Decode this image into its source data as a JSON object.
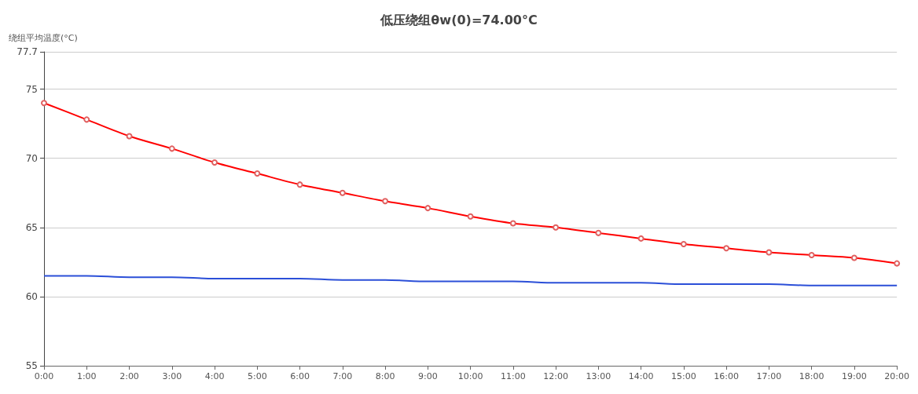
{
  "chart_data": {
    "type": "line",
    "title": "低压绕组θw(0)=74.00°C",
    "ylabel": "绕组平均温度(°C)",
    "categories": [
      "0:00",
      "1:00",
      "2:00",
      "3:00",
      "4:00",
      "5:00",
      "6:00",
      "7:00",
      "8:00",
      "9:00",
      "10:00",
      "11:00",
      "12:00",
      "13:00",
      "14:00",
      "15:00",
      "16:00",
      "17:00",
      "18:00",
      "19:00",
      "20:00"
    ],
    "series": [
      {
        "color": "#ff0000",
        "marker": "circle",
        "values": [
          74.0,
          72.8,
          71.6,
          70.7,
          69.7,
          68.9,
          68.1,
          67.5,
          66.9,
          66.4,
          65.8,
          65.3,
          65.0,
          64.6,
          64.2,
          63.8,
          63.5,
          63.2,
          63.0,
          62.8,
          62.4
        ]
      },
      {
        "color": "#2b4fd8",
        "marker": "none",
        "values": [
          61.5,
          61.5,
          61.4,
          61.4,
          61.3,
          61.3,
          61.3,
          61.2,
          61.2,
          61.1,
          61.1,
          61.1,
          61.0,
          61.0,
          61.0,
          60.9,
          60.9,
          60.9,
          60.8,
          60.8,
          60.8
        ]
      }
    ],
    "ylim": [
      55,
      77.7
    ],
    "yticks": [
      55,
      60,
      65,
      70,
      75,
      77.7
    ],
    "grid": "y"
  }
}
